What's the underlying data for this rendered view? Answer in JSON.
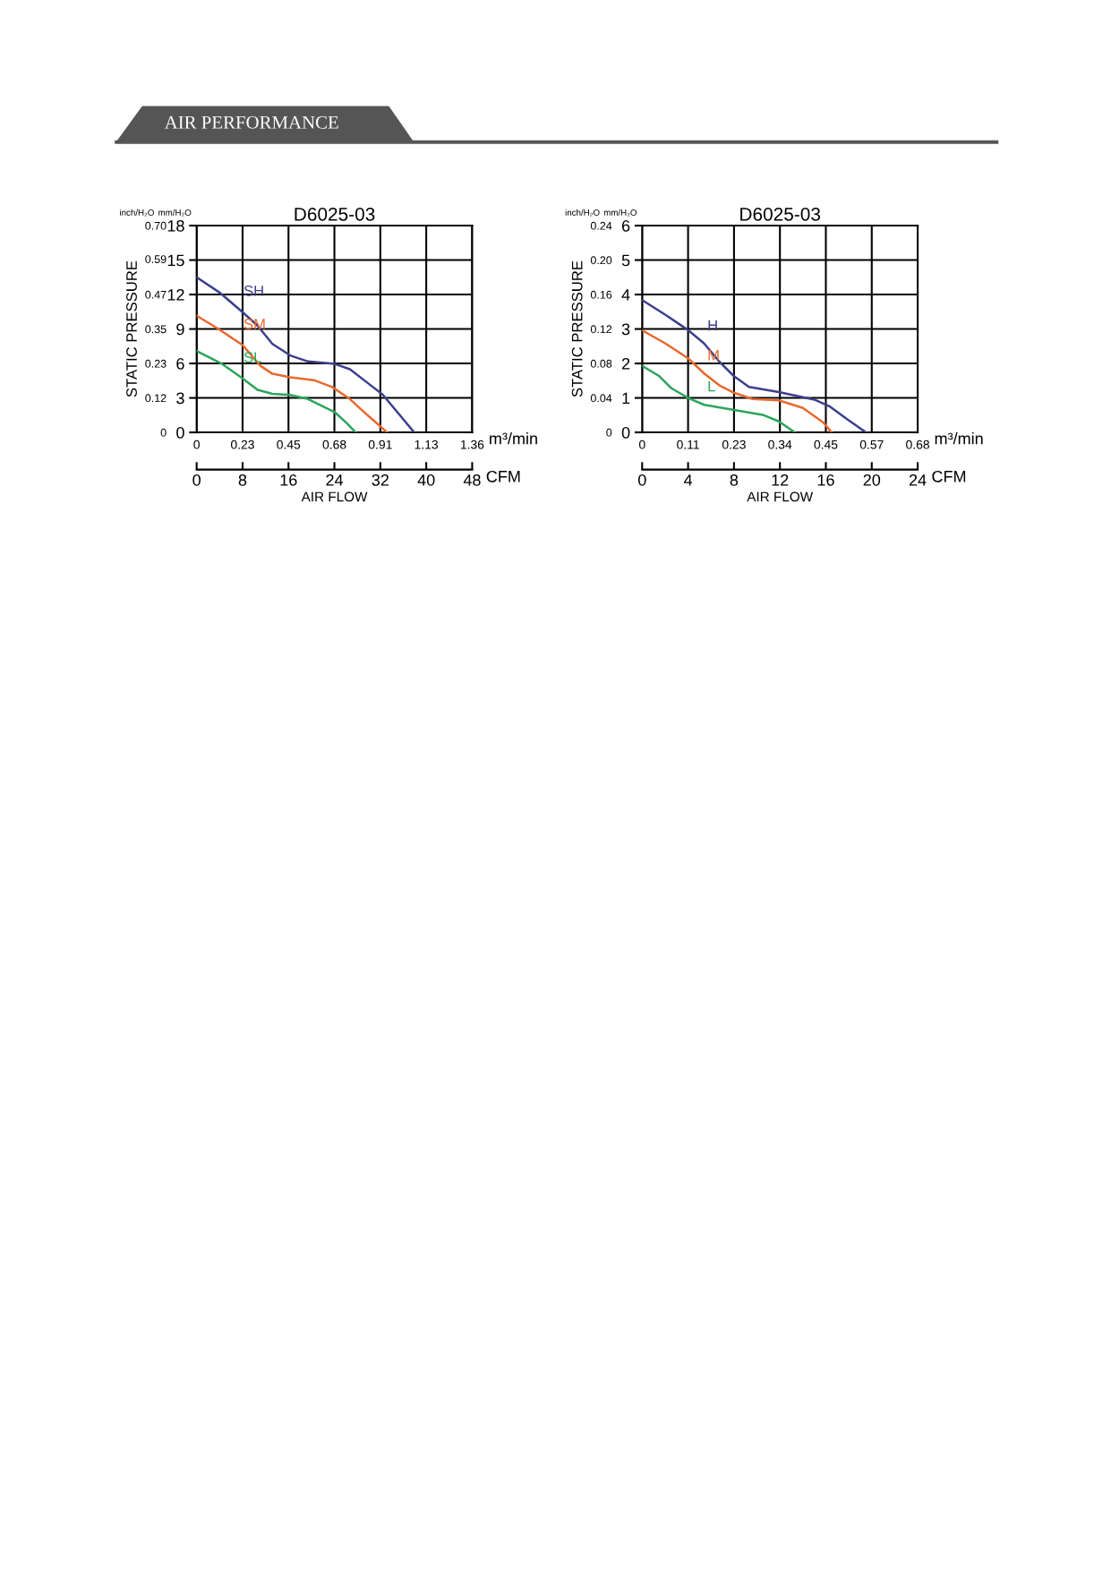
{
  "chart_data": [
    {
      "type": "line",
      "title": "D6025-03",
      "xlabel": "AIR FLOW",
      "y2label": "STATIC PRESSURE",
      "x2label": "m³/min",
      "annotations": [
        "AIR PERFORMANCE",
        "inch/H₂O",
        "mm/H₂O",
        "CFM"
      ],
      "xlim": [
        0,
        48
      ],
      "xticks": [
        0,
        8,
        16,
        24,
        32,
        40,
        48
      ],
      "x2lim": [
        0,
        1.36
      ],
      "x2ticks": [
        0,
        {
          "value": 0.2267,
          "label": "0.23"
        },
        {
          "value": 0.4533,
          "label": "0.45"
        },
        0.68,
        {
          "value": 0.9067,
          "label": "0.91"
        },
        {
          "value": 1.1333,
          "label": "1.13"
        },
        1.36
      ],
      "ylim": [
        0,
        18
      ],
      "yticks": [
        0,
        3,
        6,
        9,
        12,
        15,
        18
      ],
      "y2lim": [
        0,
        0.7
      ],
      "y2ticks": [
        0,
        {
          "value": 0.1167,
          "label": "0.12"
        },
        {
          "value": 0.2333,
          "label": "0.23"
        },
        0.35,
        {
          "value": 0.4667,
          "label": "0.47"
        },
        {
          "value": 0.587,
          "label": "0.59"
        },
        {
          "value": 0.7,
          "label": "0.70"
        }
      ],
      "grid": true,
      "legend": false,
      "marker": "none",
      "line_style": "solid",
      "series": [
        {
          "name": "SH",
          "color": "#3b3f8c",
          "x": [
            0,
            4.06,
            8,
            10.6,
            13.2,
            16.3,
            19.4,
            24.1,
            26.7,
            29.8,
            32.4,
            35,
            37.9
          ],
          "values": [
            13.5,
            12.15,
            10.46,
            9.3,
            7.7,
            6.7,
            6.17,
            5.96,
            5.5,
            4.3,
            3.3,
            1.74,
            0
          ]
        },
        {
          "name": "SM",
          "color": "#e8692e",
          "x": [
            0,
            3.8,
            8,
            11.1,
            13.2,
            16.3,
            20.4,
            23.6,
            26.7,
            29.8,
            33.2
          ],
          "values": [
            10.15,
            9.0,
            7.6,
            5.8,
            5.1,
            4.8,
            4.55,
            3.95,
            2.9,
            1.48,
            0
          ]
        },
        {
          "name": "SL",
          "color": "#2ba55b",
          "x": [
            0,
            4.3,
            8,
            10.6,
            13.2,
            16.3,
            19.4,
            24.1,
            26.1,
            27.7
          ],
          "values": [
            7.08,
            6.0,
            4.7,
            3.7,
            3.35,
            3.25,
            2.9,
            1.74,
            0.83,
            0
          ]
        }
      ]
    },
    {
      "type": "line",
      "title": "D6025-03",
      "xlabel": "AIR FLOW",
      "y2label": "STATIC PRESSURE",
      "x2label": "m³/min",
      "annotations": [
        "inch/H₂O",
        "mm/H₂O",
        "CFM"
      ],
      "xlim": [
        0,
        24
      ],
      "xticks": [
        0,
        4,
        8,
        12,
        16,
        20,
        24
      ],
      "x2lim": [
        0,
        0.68
      ],
      "x2ticks": [
        0,
        {
          "value": 0.1133,
          "label": "0.11"
        },
        {
          "value": 0.2267,
          "label": "0.23"
        },
        0.34,
        {
          "value": 0.4533,
          "label": "0.45"
        },
        {
          "value": 0.5667,
          "label": "0.57"
        },
        0.68
      ],
      "ylim": [
        0,
        6
      ],
      "yticks": [
        0,
        1,
        2,
        3,
        4,
        5,
        6
      ],
      "y2lim": [
        0,
        0.24
      ],
      "y2ticks": [
        0,
        0.04,
        0.08,
        0.12,
        0.16,
        {
          "value": 0.2,
          "label": "0.20"
        },
        0.24
      ],
      "grid": true,
      "legend": false,
      "marker": "none",
      "line_style": "solid",
      "series": [
        {
          "name": "H",
          "color": "#3b3f8c",
          "x": [
            0,
            2.03,
            4,
            5.4,
            6.7,
            8,
            9.3,
            11.9,
            15,
            16.3,
            17.9,
            19.5
          ],
          "values": [
            3.84,
            3.41,
            2.97,
            2.58,
            2.06,
            1.63,
            1.32,
            1.17,
            0.95,
            0.76,
            0.37,
            0
          ]
        },
        {
          "name": "M",
          "color": "#e8692e",
          "x": [
            0,
            2.03,
            4,
            5.4,
            6.7,
            8,
            9.6,
            11.9,
            14,
            15.8,
            16.5
          ],
          "values": [
            2.96,
            2.58,
            2.15,
            1.71,
            1.37,
            1.15,
            0.97,
            0.93,
            0.71,
            0.28,
            0
          ]
        },
        {
          "name": "L",
          "color": "#2ba55b",
          "x": [
            0,
            1.5,
            2.55,
            4,
            5.4,
            8,
            10.6,
            11.9,
            13.3
          ],
          "values": [
            1.93,
            1.63,
            1.28,
            1.0,
            0.8,
            0.65,
            0.5,
            0.32,
            0
          ]
        }
      ]
    }
  ]
}
